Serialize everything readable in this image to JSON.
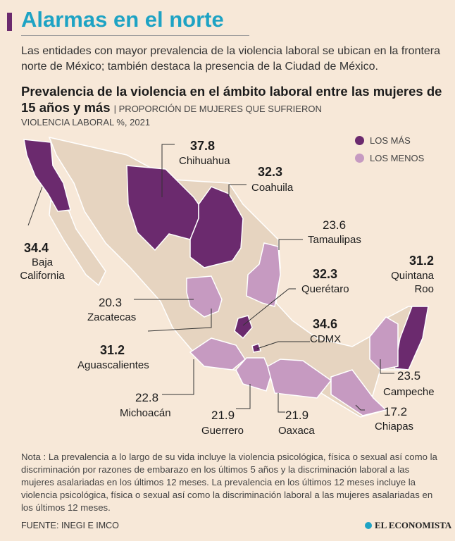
{
  "header": {
    "title": "Alarmas en el norte",
    "intro": "Las entidades con mayor prevalencia de la violencia laboral se ubican en la frontera norte de México; también destaca la presencia de la Ciudad de México."
  },
  "chart_data": {
    "type": "choropleth-map",
    "title": "Prevalencia de la violencia en el ámbito laboral entre las mujeres de 15 años y más",
    "subtitle_a": "| Proporción de mujeres que sufrieron",
    "subtitle_b": "violencia laboral %, 2021",
    "legend": [
      {
        "label": "LOS MÁS",
        "color": "#6b2a6e"
      },
      {
        "label": "LOS MENOS",
        "color": "#c69ac1"
      }
    ],
    "other_color": "#e6d4c0",
    "units": "%",
    "states": [
      {
        "name": "Chihuahua",
        "value": "37.8",
        "group": "most"
      },
      {
        "name": "CDMX",
        "value": "34.6",
        "group": "most"
      },
      {
        "name": "Baja California",
        "value": "34.4",
        "group": "most",
        "name_lines": [
          "Baja",
          "California"
        ]
      },
      {
        "name": "Coahuila",
        "value": "32.3",
        "group": "most"
      },
      {
        "name": "Querétaro",
        "value": "32.3",
        "group": "most"
      },
      {
        "name": "Quintana Roo",
        "value": "31.2",
        "group": "most",
        "name_lines": [
          "Quintana",
          "Roo"
        ]
      },
      {
        "name": "Aguascalientes",
        "value": "31.2",
        "group": "most"
      },
      {
        "name": "Tamaulipas",
        "value": "23.6",
        "group": "least"
      },
      {
        "name": "Campeche",
        "value": "23.5",
        "group": "least"
      },
      {
        "name": "Michoacán",
        "value": "22.8",
        "group": "least"
      },
      {
        "name": "Guerrero",
        "value": "21.9",
        "group": "least"
      },
      {
        "name": "Oaxaca",
        "value": "21.9",
        "group": "least"
      },
      {
        "name": "Zacatecas",
        "value": "20.3",
        "group": "least"
      },
      {
        "name": "Chiapas",
        "value": "17.2",
        "group": "least"
      }
    ]
  },
  "footer": {
    "note": "Nota : La prevalencia a lo largo de su vida incluye la violencia psicológica, física o sexual así como la discriminación por razones de embarazo en los últimos 5 años y la discriminación laboral a las mujeres asalariadas en los últimos 12 meses. La prevalencia en los  últimos 12 meses incluye la violencia psicológica, física o sexual así como la discriminación laboral a las mujeres asalariadas en los  últimos 12 meses.",
    "source": "FUENTE: INEGI E IMCO",
    "brand": "EL ECONOMISTA"
  }
}
